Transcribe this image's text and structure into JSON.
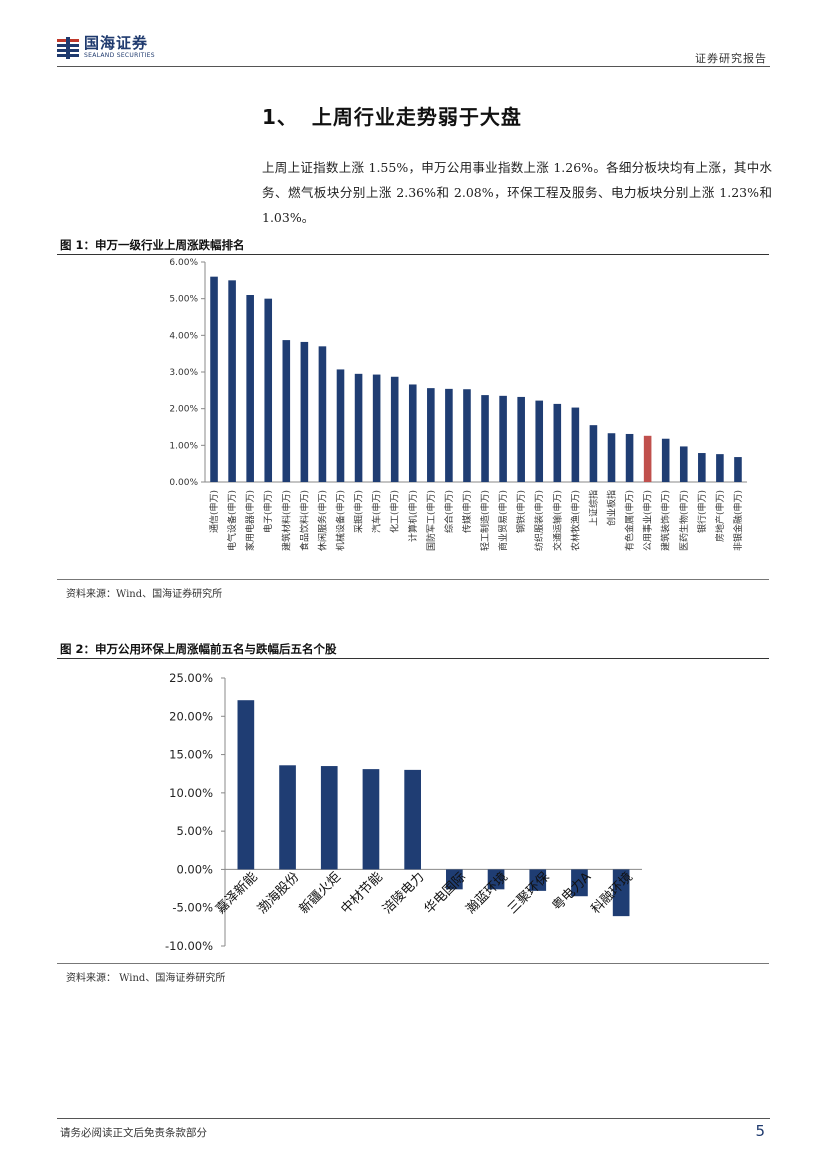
{
  "header": {
    "logo_cn": "国海证券",
    "logo_en": "SEALAND SECURITIES",
    "doc_type": "证券研究报告"
  },
  "section": {
    "number": "1、",
    "title": "上周行业走势弱于大盘"
  },
  "body_text": "上周上证指数上涨 1.55%，申万公用事业指数上涨 1.26%。各细分板块均有上涨，其中水务、燃气板块分别上涨 2.36%和 2.08%，环保工程及服务、电力板块分别上涨 1.23%和 1.03%。",
  "figure1": {
    "title": "图 1：申万一级行业上周涨跌幅排名",
    "source": "资料来源：Wind、国海证券研究所"
  },
  "figure2": {
    "title": "图 2：申万公用环保上周涨幅前五名与跌幅后五名个股",
    "source": "资料来源：  Wind、国海证券研究所"
  },
  "footer": {
    "note": "请务必阅读正文后免责条款部分",
    "page": "5"
  },
  "colors": {
    "bar": "#1f3d73",
    "highlight": "#c0504d",
    "brand": "#1f3a6e"
  },
  "chart_data": [
    {
      "type": "bar",
      "title": "",
      "categories": [
        "通信(申万)",
        "电气设备(申万)",
        "家用电器(申万)",
        "电子(申万)",
        "建筑材料(申万)",
        "食品饮料(申万)",
        "休闲服务(申万)",
        "机械设备(申万)",
        "采掘(申万)",
        "汽车(申万)",
        "化工(申万)",
        "计算机(申万)",
        "国防军工(申万)",
        "综合(申万)",
        "传媒(申万)",
        "轻工制造(申万)",
        "商业贸易(申万)",
        "钢铁(申万)",
        "纺织服装(申万)",
        "交通运输(申万)",
        "农林牧渔(申万)",
        "上证综指",
        "创业板指",
        "有色金属(申万)",
        "公用事业(申万)",
        "建筑装饰(申万)",
        "医药生物(申万)",
        "银行(申万)",
        "房地产(申万)",
        "非银金融(申万)"
      ],
      "values": [
        5.6,
        5.5,
        5.1,
        5.0,
        3.87,
        3.82,
        3.7,
        3.07,
        2.95,
        2.93,
        2.87,
        2.66,
        2.56,
        2.54,
        2.53,
        2.37,
        2.35,
        2.32,
        2.22,
        2.13,
        2.03,
        1.55,
        1.33,
        1.31,
        1.26,
        1.18,
        0.97,
        0.79,
        0.76,
        0.68
      ],
      "highlight_index": 24,
      "ylim": [
        0,
        6
      ],
      "yticks": [
        "0.00%",
        "1.00%",
        "2.00%",
        "3.00%",
        "4.00%",
        "5.00%",
        "6.00%"
      ],
      "grid": false,
      "legend": "none"
    },
    {
      "type": "bar",
      "title": "",
      "categories": [
        "嘉泽新能",
        "渤海股份",
        "新疆火炬",
        "中材节能",
        "涪陵电力",
        "华电国际",
        "瀚蓝环境",
        "三聚环保",
        "粤电力A",
        "科融环境"
      ],
      "values": [
        22.1,
        13.6,
        13.5,
        13.1,
        13.0,
        -2.6,
        -2.6,
        -2.8,
        -3.5,
        -6.1
      ],
      "ylim": [
        -10,
        25
      ],
      "yticks": [
        "-10.00%",
        "-5.00%",
        "0.00%",
        "5.00%",
        "10.00%",
        "15.00%",
        "20.00%",
        "25.00%"
      ],
      "grid": false,
      "legend": "none"
    }
  ]
}
